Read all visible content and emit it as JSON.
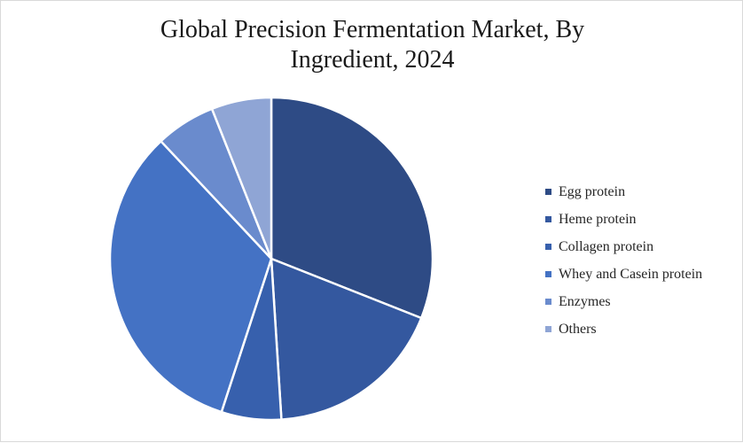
{
  "chart_data": {
    "type": "pie",
    "title": "Global Precision Fermentation Market, By Ingredient, 2024",
    "title_lines": [
      "Global Precision Fermentation Market, By",
      "Ingredient, 2024"
    ],
    "slices": [
      {
        "label": "Egg protein",
        "value": 31,
        "color": "#2e4b85"
      },
      {
        "label": "Heme protein",
        "value": 18,
        "color": "#34589f"
      },
      {
        "label": "Collagen protein",
        "value": 6,
        "color": "#3760ad"
      },
      {
        "label": "Whey and Casein protein",
        "value": 33,
        "color": "#4472c4"
      },
      {
        "label": "Enzymes",
        "value": 6,
        "color": "#6a8bcd"
      },
      {
        "label": "Others",
        "value": 6,
        "color": "#8fa5d5"
      }
    ],
    "legend_position": "right"
  }
}
